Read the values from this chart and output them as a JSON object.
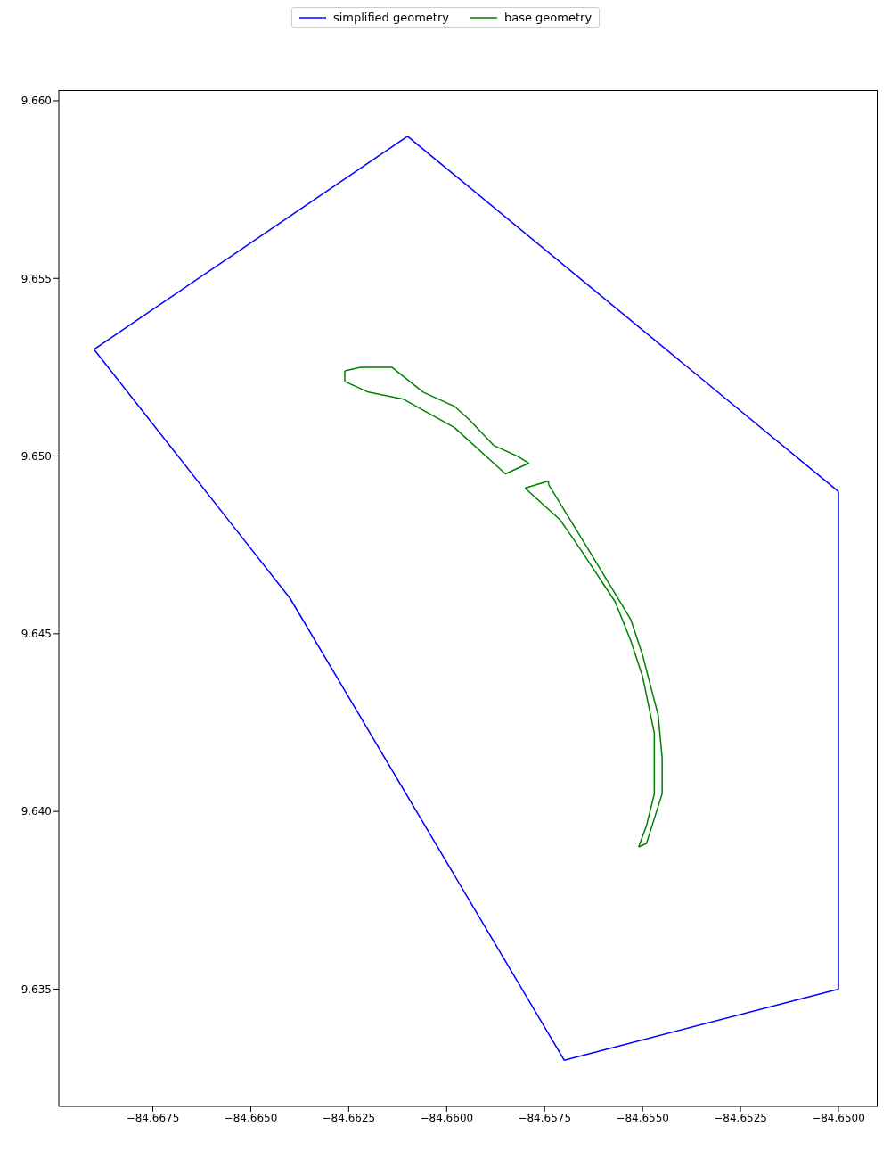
{
  "chart_data": {
    "type": "line",
    "legend": "top",
    "marker": "none",
    "line_style": "solid",
    "grid": false,
    "xlim": [
      -84.6699,
      -84.649
    ],
    "ylim": [
      9.6317,
      9.6603
    ],
    "xticks": [
      {
        "value": -84.6675,
        "label": "−84.6675"
      },
      {
        "value": -84.665,
        "label": "−84.6650"
      },
      {
        "value": -84.6625,
        "label": "−84.6625"
      },
      {
        "value": -84.66,
        "label": "−84.6600"
      },
      {
        "value": -84.6575,
        "label": "−84.6575"
      },
      {
        "value": -84.655,
        "label": "−84.6550"
      },
      {
        "value": -84.6525,
        "label": "−84.6525"
      },
      {
        "value": -84.65,
        "label": "−84.6500"
      }
    ],
    "yticks": [
      {
        "value": 9.635,
        "label": "9.635"
      },
      {
        "value": 9.64,
        "label": "9.640"
      },
      {
        "value": 9.645,
        "label": "9.645"
      },
      {
        "value": 9.65,
        "label": "9.650"
      },
      {
        "value": 9.655,
        "label": "9.655"
      },
      {
        "value": 9.66,
        "label": "9.660"
      }
    ],
    "series": [
      {
        "name": "simplified geometry",
        "color": "#0000ff",
        "x": [
          -84.669,
          -84.661,
          -84.65
        ],
        "values": [
          9.653,
          9.659,
          9.649
        ]
      },
      {
        "color": "#0000ff",
        "x": [
          -84.65,
          -84.65
        ],
        "values": [
          9.649,
          9.635
        ]
      },
      {
        "color": "#0000ff",
        "x": [
          -84.65,
          -84.657,
          -84.664,
          -84.669
        ],
        "values": [
          9.635,
          9.633,
          9.646,
          9.653
        ]
      },
      {
        "name": "base geometry",
        "color": "#008000",
        "x": [
          -84.6626,
          -84.6622,
          -84.6618,
          -84.6614,
          -84.6606,
          -84.6598,
          -84.6594,
          -84.6588,
          -84.6582,
          -84.6579
        ],
        "values": [
          9.6524,
          9.6525,
          9.6525,
          9.6525,
          9.6518,
          9.6514,
          9.651,
          9.6503,
          9.65,
          9.6498
        ]
      },
      {
        "color": "#008000",
        "x": [
          -84.6579,
          -84.6585,
          -84.6598,
          -84.6611,
          -84.662,
          -84.6626
        ],
        "values": [
          9.6498,
          9.6495,
          9.6508,
          9.6516,
          9.6518,
          9.6521
        ]
      },
      {
        "color": "#008000",
        "x": [
          -84.6626,
          -84.6626
        ],
        "values": [
          9.6521,
          9.6524
        ]
      },
      {
        "color": "#008000",
        "x": [
          -84.658,
          -84.6574,
          -84.6574
        ],
        "values": [
          9.6491,
          9.6493,
          9.6492
        ]
      },
      {
        "color": "#008000",
        "x": [
          -84.6574,
          -84.6564,
          -84.6553,
          -84.655,
          -84.6546,
          -84.6545,
          -84.6545,
          -84.6547,
          -84.6549,
          -84.6551
        ],
        "values": [
          9.6492,
          9.6474,
          9.6454,
          9.6444,
          9.6427,
          9.6415,
          9.6405,
          9.6398,
          9.6391,
          9.639
        ]
      },
      {
        "color": "#008000",
        "x": [
          -84.6551,
          -84.6549,
          -84.6547,
          -84.6547,
          -84.6547,
          -84.655,
          -84.6553,
          -84.6557,
          -84.6566,
          -84.6571,
          -84.658
        ],
        "values": [
          9.639,
          9.6396,
          9.6405,
          9.6413,
          9.6422,
          9.6438,
          9.6448,
          9.6459,
          9.6474,
          9.6482,
          9.6491
        ]
      }
    ]
  }
}
